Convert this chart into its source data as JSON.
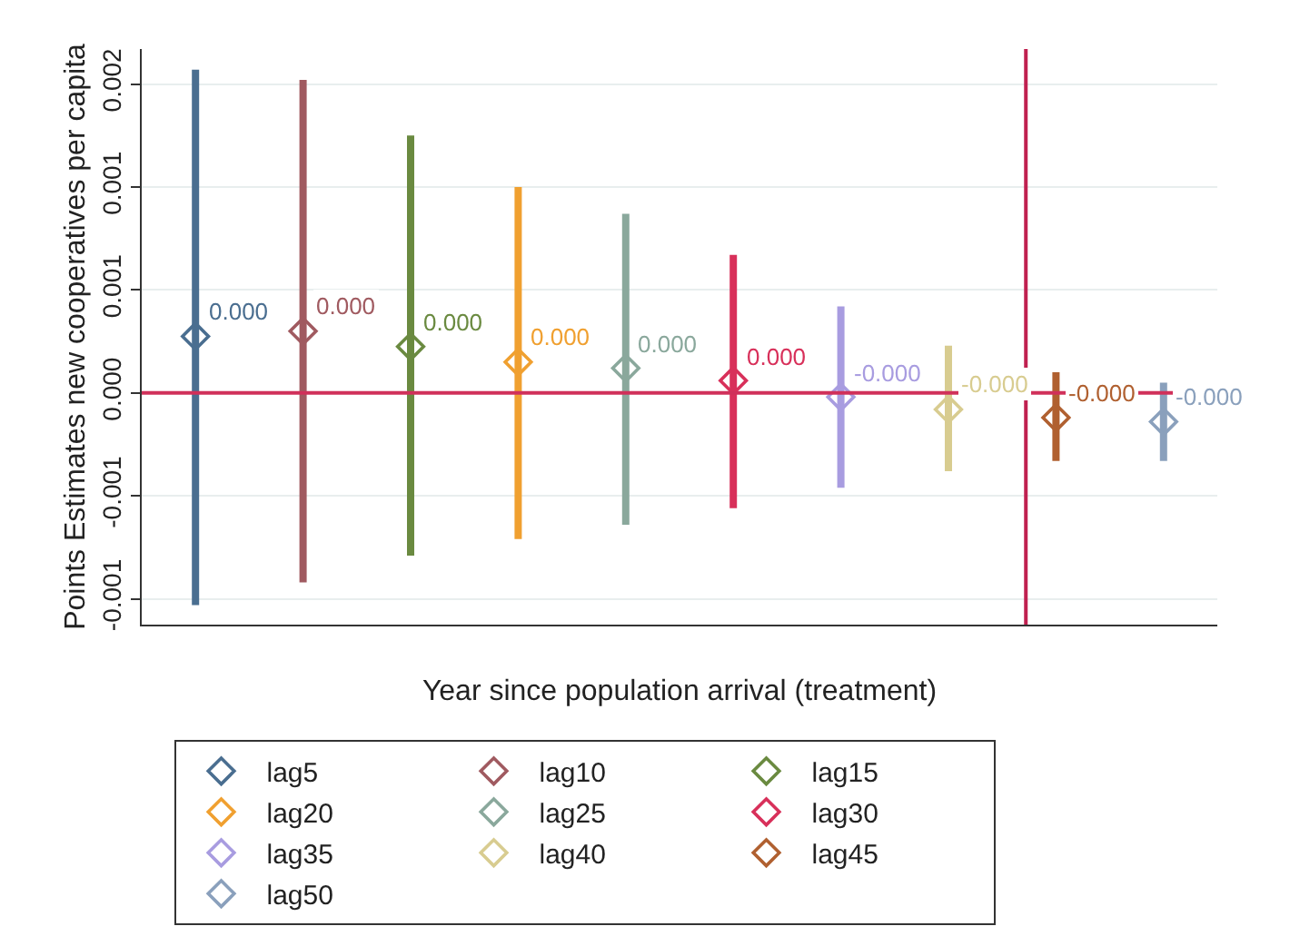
{
  "chart_data": {
    "type": "scatter",
    "xlabel": "Year since population arrival (treatment)",
    "ylabel": "Points Estimates new cooperatives per capita",
    "categories": [
      null,
      null,
      null,
      null,
      null,
      null,
      null,
      null,
      null,
      null
    ],
    "ylim": [
      -0.001125,
      0.00167
    ],
    "yticks": [
      {
        "value": -0.001,
        "label": "-0.001"
      },
      {
        "value": -0.0005,
        "label": "-0.001"
      },
      {
        "value": 0,
        "label": "0.000"
      },
      {
        "value": 0.0005,
        "label": "0.001"
      },
      {
        "value": 0.001,
        "label": "0.001"
      },
      {
        "value": 0.0015,
        "label": "0.002"
      }
    ],
    "grid": "y",
    "legend": "bottom",
    "marker": "diamond",
    "tick_labels": "y",
    "ref_lines": [
      {
        "axis": "y",
        "value": 0,
        "color": "#d0305a"
      }
    ],
    "series": [
      {
        "name": "lag5",
        "color": "#4a6e90",
        "values": [
          0.000275,
          null,
          null,
          null,
          null,
          null,
          null,
          null,
          null,
          null
        ],
        "errors": [
          [
            -0.00103,
            0.00157
          ],
          null,
          null,
          null,
          null,
          null,
          null,
          null,
          null,
          null
        ],
        "value_labels": [
          "0.000",
          null,
          null,
          null,
          null,
          null,
          null,
          null,
          null,
          null
        ]
      },
      {
        "name": "lag10",
        "color": "#a05a60",
        "values": [
          null,
          0.0003,
          null,
          null,
          null,
          null,
          null,
          null,
          null,
          null
        ],
        "errors": [
          null,
          [
            -0.00092,
            0.00152
          ],
          null,
          null,
          null,
          null,
          null,
          null,
          null,
          null
        ],
        "value_labels": [
          null,
          "0.000",
          null,
          null,
          null,
          null,
          null,
          null,
          null,
          null
        ]
      },
      {
        "name": "lag15",
        "color": "#6a8a40",
        "values": [
          null,
          null,
          0.000225,
          null,
          null,
          null,
          null,
          null,
          null,
          null
        ],
        "errors": [
          null,
          null,
          [
            -0.00079,
            0.00125
          ],
          null,
          null,
          null,
          null,
          null,
          null,
          null
        ],
        "value_labels": [
          null,
          null,
          "0.000",
          null,
          null,
          null,
          null,
          null,
          null,
          null
        ]
      },
      {
        "name": "lag20",
        "color": "#f0a030",
        "values": [
          null,
          null,
          null,
          0.00015,
          null,
          null,
          null,
          null,
          null,
          null
        ],
        "errors": [
          null,
          null,
          null,
          [
            -0.00071,
            0.001
          ],
          null,
          null,
          null,
          null,
          null,
          null
        ],
        "value_labels": [
          null,
          null,
          null,
          "0.000",
          null,
          null,
          null,
          null,
          null,
          null
        ]
      },
      {
        "name": "lag25",
        "color": "#8aa89c",
        "values": [
          null,
          null,
          null,
          null,
          0.00012,
          null,
          null,
          null,
          null,
          null
        ],
        "errors": [
          null,
          null,
          null,
          null,
          [
            -0.00064,
            0.00087
          ],
          null,
          null,
          null,
          null,
          null
        ],
        "value_labels": [
          null,
          null,
          null,
          null,
          "0.000",
          null,
          null,
          null,
          null,
          null
        ]
      },
      {
        "name": "lag30",
        "color": "#d8305a",
        "values": [
          null,
          null,
          null,
          null,
          null,
          6e-05,
          null,
          null,
          null,
          null
        ],
        "errors": [
          null,
          null,
          null,
          null,
          null,
          [
            -0.00056,
            0.00067
          ],
          null,
          null,
          null,
          null
        ],
        "value_labels": [
          null,
          null,
          null,
          null,
          null,
          "0.000",
          null,
          null,
          null,
          null
        ]
      },
      {
        "name": "lag35",
        "color": "#a89ce0",
        "values": [
          null,
          null,
          null,
          null,
          null,
          null,
          -2e-05,
          null,
          null,
          null
        ],
        "errors": [
          null,
          null,
          null,
          null,
          null,
          null,
          [
            -0.00046,
            0.00042
          ],
          null,
          null,
          null
        ],
        "value_labels": [
          null,
          null,
          null,
          null,
          null,
          null,
          "-0.000",
          null,
          null,
          null
        ]
      },
      {
        "name": "lag40",
        "color": "#d8cc90",
        "values": [
          null,
          null,
          null,
          null,
          null,
          null,
          null,
          -8e-05,
          null,
          null
        ],
        "errors": [
          null,
          null,
          null,
          null,
          null,
          null,
          null,
          [
            -0.00038,
            0.00023
          ],
          null,
          null
        ],
        "value_labels": [
          null,
          null,
          null,
          null,
          null,
          null,
          null,
          "-0.000",
          null,
          null
        ]
      },
      {
        "name": "lag45",
        "color": "#b06030",
        "values": [
          null,
          null,
          null,
          null,
          null,
          null,
          null,
          null,
          -0.00012,
          null
        ],
        "errors": [
          null,
          null,
          null,
          null,
          null,
          null,
          null,
          null,
          [
            -0.00033,
            0.0001
          ],
          null
        ],
        "value_labels": [
          null,
          null,
          null,
          null,
          null,
          null,
          null,
          null,
          "-0.000",
          null
        ]
      },
      {
        "name": "lag50",
        "color": "#8aa0bc",
        "values": [
          null,
          null,
          null,
          null,
          null,
          null,
          null,
          null,
          null,
          -0.00014
        ],
        "errors": [
          null,
          null,
          null,
          null,
          null,
          null,
          null,
          null,
          null,
          [
            -0.00033,
            5e-05
          ]
        ],
        "value_labels": [
          null,
          null,
          null,
          null,
          null,
          null,
          null,
          null,
          null,
          "-0.000"
        ]
      }
    ]
  }
}
